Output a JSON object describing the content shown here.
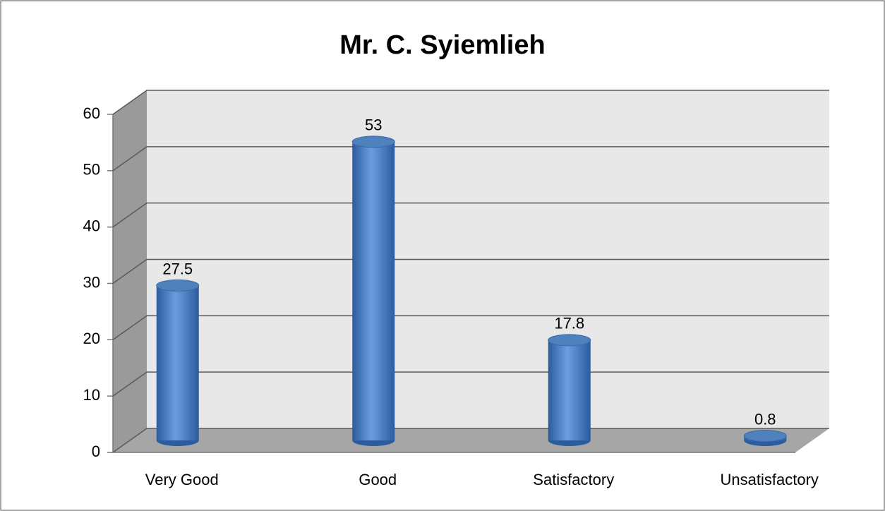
{
  "chart_data": {
    "type": "bar",
    "title": "Mr. C. Syiemlieh",
    "categories": [
      "Very Good",
      "Good",
      "Satisfactory",
      "Unsatisfactory"
    ],
    "values": [
      27.5,
      53,
      17.8,
      0.8
    ],
    "color": "#4f81bd",
    "ylim": [
      0,
      60
    ],
    "yticks": [
      0,
      10,
      20,
      30,
      40,
      50,
      60
    ],
    "grid": true
  }
}
